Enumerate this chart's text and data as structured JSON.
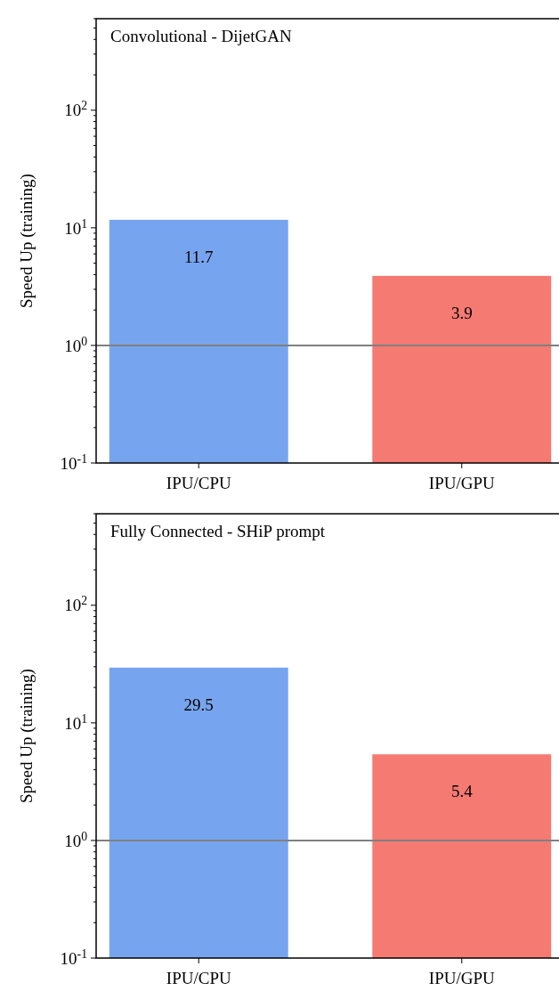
{
  "chart_data": [
    {
      "type": "bar",
      "title": "Convolutional - DijetGAN",
      "ylabel": "Speed Up (training)",
      "categories": [
        "IPU/CPU",
        "IPU/GPU"
      ],
      "values": [
        11.7,
        3.9
      ],
      "colors": [
        "#77a4ee",
        "#f47a72"
      ],
      "log": true,
      "ylim": [
        0.1,
        600
      ],
      "yticks": [
        {
          "value": 0.1,
          "label": "10$^{-1}$"
        },
        {
          "value": 1,
          "label": "10$^{0}$"
        },
        {
          "value": 10,
          "label": "10$^{1}$"
        },
        {
          "value": 100,
          "label": "10$^{2}$"
        }
      ],
      "data_labels": true,
      "ref_lines": [
        {
          "axis": "y",
          "value": 1,
          "color": "#808080"
        }
      ]
    },
    {
      "type": "bar",
      "title": "Fully Connected - SHiP prompt",
      "ylabel": "Speed Up (training)",
      "categories": [
        "IPU/CPU",
        "IPU/GPU"
      ],
      "values": [
        29.5,
        5.4
      ],
      "colors": [
        "#77a4ee",
        "#f47a72"
      ],
      "log": true,
      "ylim": [
        0.1,
        600
      ],
      "yticks": [
        {
          "value": 0.1,
          "label": "10$^{-1}$"
        },
        {
          "value": 1,
          "label": "10$^{0}$"
        },
        {
          "value": 10,
          "label": "10$^{1}$"
        },
        {
          "value": 100,
          "label": "10$^{2}$"
        }
      ],
      "data_labels": true,
      "ref_lines": [
        {
          "axis": "y",
          "value": 1,
          "color": "#808080"
        }
      ]
    }
  ]
}
